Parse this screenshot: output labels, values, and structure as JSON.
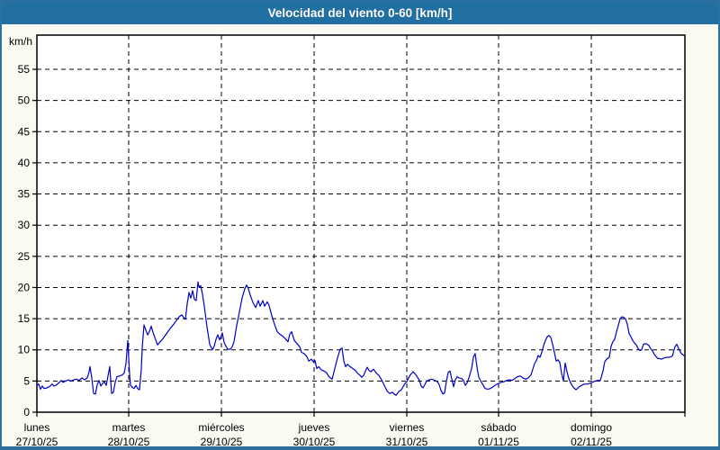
{
  "window": {
    "title": "Velocidad del viento 0-60 [km/h]"
  },
  "colors": {
    "titlebar_bg": "#2270a2",
    "frame_border": "#2d6f9f",
    "page_bg": "#fafaf2",
    "plot_bg": "#ffffff",
    "grid": "#000000",
    "axis_text": "#000000",
    "title_text": "#ffffff",
    "line": "#0000cc"
  },
  "chart_data": {
    "type": "line",
    "title": "Velocidad del viento 0-60 [km/h]",
    "ylabel": "km/h",
    "xlabel": "",
    "ylim": [
      0,
      60
    ],
    "y_ticks": [
      0,
      5,
      10,
      15,
      20,
      25,
      30,
      35,
      40,
      45,
      50,
      55
    ],
    "grid": "dashed",
    "legend_position": "none",
    "x_days": [
      {
        "name": "lunes",
        "date": "27/10/25"
      },
      {
        "name": "martes",
        "date": "28/10/25"
      },
      {
        "name": "miércoles",
        "date": "29/10/25"
      },
      {
        "name": "jueves",
        "date": "30/10/25"
      },
      {
        "name": "viernes",
        "date": "31/10/25"
      },
      {
        "name": "sábado",
        "date": "01/11/25"
      },
      {
        "name": "domingo",
        "date": "02/11/25"
      }
    ],
    "series": [
      {
        "name": "Velocidad del viento (km/h)",
        "points": [
          [
            41,
            4.3
          ],
          [
            43,
            4.5
          ],
          [
            45,
            3.7
          ],
          [
            47,
            4.2
          ],
          [
            49,
            3.8
          ],
          [
            52,
            3.9
          ],
          [
            55,
            4.1
          ],
          [
            58,
            4.5
          ],
          [
            60,
            4.2
          ],
          [
            63,
            4.4
          ],
          [
            66,
            4.8
          ],
          [
            68,
            5.1
          ],
          [
            70,
            4.8
          ],
          [
            73,
            5.0
          ],
          [
            76,
            5.2
          ],
          [
            79,
            5.0
          ],
          [
            82,
            5.2
          ],
          [
            85,
            5.3
          ],
          [
            88,
            5.1
          ],
          [
            91,
            5.5
          ],
          [
            94,
            5.2
          ],
          [
            97,
            5.5
          ],
          [
            99,
            6.5
          ],
          [
            100,
            7.3
          ],
          [
            102,
            5.5
          ],
          [
            104,
            3.0
          ],
          [
            106,
            2.9
          ],
          [
            108,
            4.4
          ],
          [
            110,
            5.1
          ],
          [
            112,
            4.2
          ],
          [
            114,
            4.6
          ],
          [
            116,
            4.9
          ],
          [
            118,
            4.3
          ],
          [
            120,
            5.8
          ],
          [
            122,
            7.3
          ],
          [
            124,
            3.0
          ],
          [
            126,
            3.2
          ],
          [
            128,
            4.8
          ],
          [
            130,
            5.7
          ],
          [
            133,
            5.8
          ],
          [
            136,
            6.0
          ],
          [
            138,
            6.3
          ],
          [
            140,
            7.8
          ],
          [
            142,
            11.5
          ],
          [
            144,
            6.0
          ],
          [
            145,
            4.3
          ],
          [
            147,
            4.0
          ],
          [
            149,
            3.8
          ],
          [
            151,
            4.3
          ],
          [
            153,
            3.8
          ],
          [
            155,
            3.6
          ],
          [
            157,
            6.9
          ],
          [
            158,
            10.3
          ],
          [
            160,
            14.0
          ],
          [
            162,
            13.2
          ],
          [
            164,
            12.4
          ],
          [
            166,
            12.9
          ],
          [
            168,
            13.8
          ],
          [
            170,
            12.8
          ],
          [
            172,
            12.0
          ],
          [
            175,
            10.8
          ],
          [
            178,
            11.3
          ],
          [
            181,
            11.8
          ],
          [
            184,
            12.4
          ],
          [
            187,
            13.0
          ],
          [
            190,
            13.6
          ],
          [
            193,
            14.1
          ],
          [
            196,
            14.7
          ],
          [
            199,
            15.3
          ],
          [
            202,
            15.6
          ],
          [
            204,
            15.2
          ],
          [
            206,
            14.9
          ],
          [
            208,
            17.4
          ],
          [
            210,
            19.2
          ],
          [
            212,
            18.3
          ],
          [
            214,
            19.5
          ],
          [
            216,
            18.1
          ],
          [
            218,
            17.9
          ],
          [
            220,
            20.9
          ],
          [
            221,
            20.1
          ],
          [
            223,
            20.3
          ],
          [
            225,
            18.9
          ],
          [
            227,
            17.0
          ],
          [
            230,
            13.7
          ],
          [
            233,
            10.9
          ],
          [
            236,
            10.0
          ],
          [
            238,
            10.6
          ],
          [
            240,
            11.7
          ],
          [
            242,
            12.4
          ],
          [
            244,
            11.6
          ],
          [
            246,
            12.3
          ],
          [
            247,
            12.7
          ],
          [
            249,
            11.2
          ],
          [
            251,
            10.6
          ],
          [
            253,
            10.1
          ],
          [
            256,
            10.1
          ],
          [
            258,
            10.5
          ],
          [
            260,
            11.3
          ],
          [
            263,
            13.9
          ],
          [
            266,
            16.1
          ],
          [
            269,
            18.3
          ],
          [
            272,
            19.8
          ],
          [
            274,
            20.4
          ],
          [
            276,
            19.8
          ],
          [
            278,
            18.8
          ],
          [
            281,
            17.6
          ],
          [
            284,
            16.8
          ],
          [
            287,
            17.9
          ],
          [
            289,
            17.0
          ],
          [
            292,
            17.9
          ],
          [
            294,
            17.0
          ],
          [
            297,
            17.7
          ],
          [
            299,
            17.1
          ],
          [
            301,
            16.0
          ],
          [
            303,
            15.0
          ],
          [
            305,
            14.1
          ],
          [
            308,
            12.9
          ],
          [
            311,
            12.5
          ],
          [
            314,
            12.2
          ],
          [
            317,
            11.8
          ],
          [
            320,
            11.3
          ],
          [
            322,
            12.5
          ],
          [
            324,
            12.9
          ],
          [
            327,
            11.5
          ],
          [
            330,
            11.0
          ],
          [
            333,
            10.5
          ],
          [
            335,
            9.6
          ],
          [
            338,
            9.4
          ],
          [
            341,
            8.9
          ],
          [
            343,
            8.2
          ],
          [
            346,
            8.5
          ],
          [
            348,
            8.1
          ],
          [
            350,
            8.3
          ],
          [
            352,
            7.0
          ],
          [
            354,
            7.3
          ],
          [
            357,
            6.8
          ],
          [
            360,
            6.6
          ],
          [
            363,
            6.3
          ],
          [
            365,
            5.8
          ],
          [
            367,
            5.5
          ],
          [
            369,
            5.3
          ],
          [
            372,
            7.0
          ],
          [
            375,
            8.7
          ],
          [
            378,
            10.1
          ],
          [
            380,
            10.3
          ],
          [
            382,
            8.2
          ],
          [
            384,
            7.3
          ],
          [
            386,
            7.7
          ],
          [
            389,
            7.3
          ],
          [
            392,
            7.0
          ],
          [
            395,
            6.7
          ],
          [
            397,
            6.3
          ],
          [
            400,
            5.9
          ],
          [
            402,
            5.6
          ],
          [
            404,
            5.9
          ],
          [
            406,
            6.6
          ],
          [
            408,
            7.2
          ],
          [
            410,
            6.7
          ],
          [
            412,
            6.5
          ],
          [
            415,
            6.9
          ],
          [
            418,
            6.3
          ],
          [
            421,
            5.9
          ],
          [
            424,
            5.2
          ],
          [
            427,
            4.3
          ],
          [
            430,
            3.4
          ],
          [
            433,
            3.0
          ],
          [
            436,
            3.2
          ],
          [
            438,
            2.9
          ],
          [
            440,
            2.7
          ],
          [
            443,
            3.3
          ],
          [
            446,
            3.6
          ],
          [
            448,
            4.1
          ],
          [
            450,
            4.6
          ],
          [
            452,
            4.9
          ],
          [
            454,
            5.5
          ],
          [
            456,
            6.0
          ],
          [
            459,
            6.5
          ],
          [
            461,
            6.2
          ],
          [
            463,
            5.8
          ],
          [
            466,
            5.1
          ],
          [
            468,
            4.2
          ],
          [
            470,
            3.9
          ],
          [
            472,
            4.4
          ],
          [
            474,
            5.0
          ],
          [
            477,
            5.2
          ],
          [
            480,
            5.3
          ],
          [
            483,
            5.1
          ],
          [
            486,
            4.9
          ],
          [
            488,
            4.4
          ],
          [
            490,
            3.5
          ],
          [
            492,
            2.9
          ],
          [
            494,
            3.1
          ],
          [
            496,
            5.0
          ],
          [
            498,
            6.4
          ],
          [
            500,
            6.6
          ],
          [
            502,
            5.3
          ],
          [
            504,
            4.1
          ],
          [
            506,
            5.2
          ],
          [
            508,
            5.7
          ],
          [
            510,
            5.5
          ],
          [
            513,
            5.4
          ],
          [
            515,
            5.1
          ],
          [
            517,
            4.3
          ],
          [
            519,
            4.7
          ],
          [
            521,
            5.5
          ],
          [
            524,
            7.0
          ],
          [
            526,
            8.8
          ],
          [
            528,
            9.4
          ],
          [
            530,
            7.2
          ],
          [
            532,
            5.6
          ],
          [
            535,
            4.8
          ],
          [
            537,
            4.3
          ],
          [
            539,
            3.8
          ],
          [
            542,
            3.7
          ],
          [
            545,
            3.8
          ],
          [
            548,
            4.1
          ],
          [
            551,
            4.4
          ],
          [
            554,
            4.6
          ],
          [
            557,
            4.8
          ],
          [
            560,
            4.9
          ],
          [
            563,
            5.1
          ],
          [
            566,
            5.2
          ],
          [
            569,
            5.1
          ],
          [
            572,
            5.4
          ],
          [
            575,
            5.7
          ],
          [
            578,
            5.8
          ],
          [
            581,
            5.5
          ],
          [
            584,
            5.3
          ],
          [
            587,
            5.5
          ],
          [
            590,
            6.0
          ],
          [
            592,
            6.9
          ],
          [
            594,
            7.8
          ],
          [
            596,
            8.3
          ],
          [
            598,
            9.1
          ],
          [
            600,
            8.8
          ],
          [
            602,
            9.6
          ],
          [
            604,
            10.7
          ],
          [
            606,
            11.5
          ],
          [
            608,
            12.1
          ],
          [
            610,
            12.3
          ],
          [
            612,
            12.0
          ],
          [
            614,
            10.9
          ],
          [
            616,
            9.6
          ],
          [
            618,
            8.2
          ],
          [
            620,
            8.4
          ],
          [
            622,
            8.0
          ],
          [
            624,
            6.2
          ],
          [
            626,
            5.0
          ],
          [
            628,
            7.9
          ],
          [
            630,
            6.5
          ],
          [
            632,
            5.4
          ],
          [
            634,
            4.7
          ],
          [
            637,
            4.0
          ],
          [
            640,
            3.6
          ],
          [
            643,
            4.0
          ],
          [
            646,
            4.3
          ],
          [
            649,
            4.5
          ],
          [
            652,
            4.5
          ],
          [
            655,
            4.6
          ],
          [
            658,
            4.8
          ],
          [
            661,
            5.0
          ],
          [
            664,
            5.1
          ],
          [
            667,
            5.1
          ],
          [
            670,
            6.6
          ],
          [
            672,
            8.1
          ],
          [
            674,
            8.5
          ],
          [
            677,
            8.8
          ],
          [
            679,
            10.6
          ],
          [
            681,
            11.3
          ],
          [
            683,
            11.7
          ],
          [
            685,
            12.9
          ],
          [
            687,
            13.9
          ],
          [
            689,
            15.0
          ],
          [
            691,
            15.3
          ],
          [
            693,
            15.2
          ],
          [
            695,
            15.0
          ],
          [
            697,
            14.1
          ],
          [
            699,
            12.6
          ],
          [
            701,
            12.1
          ],
          [
            703,
            11.5
          ],
          [
            705,
            11.1
          ],
          [
            707,
            10.8
          ],
          [
            709,
            10.2
          ],
          [
            711,
            9.9
          ],
          [
            713,
            10.0
          ],
          [
            715,
            10.9
          ],
          [
            717,
            11.0
          ],
          [
            719,
            10.9
          ],
          [
            721,
            10.7
          ],
          [
            723,
            10.2
          ],
          [
            725,
            9.8
          ],
          [
            727,
            9.3
          ],
          [
            729,
            8.9
          ],
          [
            731,
            8.6
          ],
          [
            733,
            8.6
          ],
          [
            735,
            8.5
          ],
          [
            738,
            8.7
          ],
          [
            741,
            8.8
          ],
          [
            744,
            8.8
          ],
          [
            747,
            9.0
          ],
          [
            750,
            10.5
          ],
          [
            752,
            10.9
          ],
          [
            754,
            10.2
          ],
          [
            757,
            9.4
          ],
          [
            760,
            9.1
          ]
        ]
      }
    ]
  }
}
